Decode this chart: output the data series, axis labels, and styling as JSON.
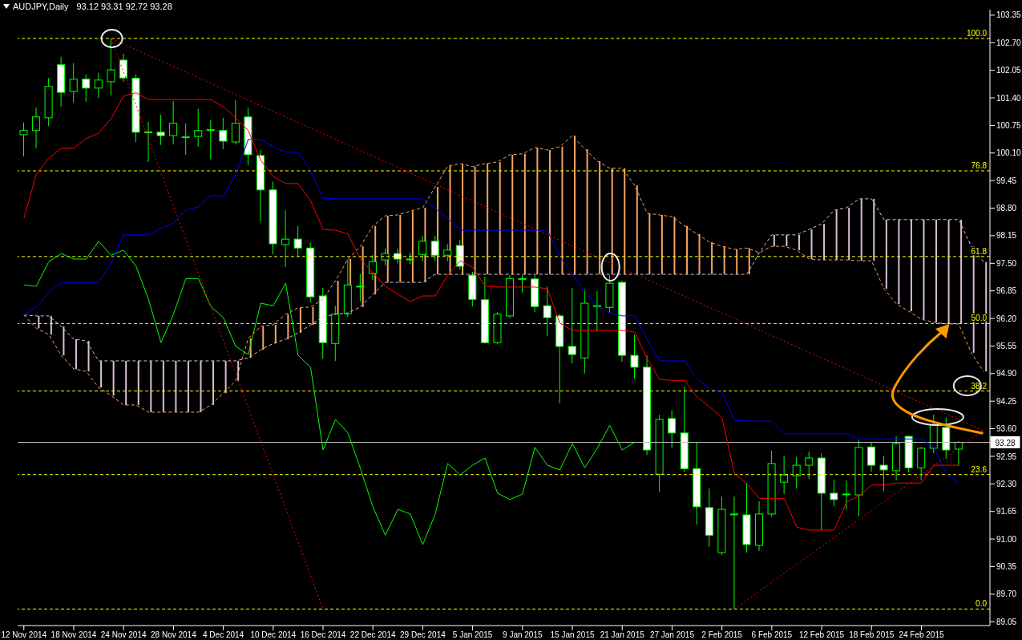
{
  "chart_data": {
    "type": "candlestick",
    "title": "AUDJPY,Daily",
    "subtitle": "93.12 93.31 92.72 93.28",
    "categories": [
      "12 Nov 2014",
      null,
      null,
      null,
      "18 Nov 2014",
      null,
      null,
      null,
      "24 Nov 2014",
      null,
      null,
      null,
      "28 Nov 2014",
      null,
      null,
      null,
      "4 Dec 2014",
      null,
      null,
      null,
      "10 Dec 2014",
      null,
      null,
      null,
      "16 Dec 2014",
      null,
      null,
      null,
      "22 Dec 2014",
      null,
      null,
      null,
      "29 Dec 2014",
      null,
      null,
      null,
      "5 Jan 2015",
      null,
      null,
      null,
      "9 Jan 2015",
      null,
      null,
      null,
      "15 Jan 2015",
      null,
      null,
      null,
      "21 Jan 2015",
      null,
      null,
      null,
      "27 Jan 2015",
      null,
      null,
      null,
      "2 Feb 2015",
      null,
      null,
      null,
      "6 Feb 2015",
      null,
      null,
      null,
      "12 Feb 2015",
      null,
      null,
      null,
      "18 Feb 2015",
      null,
      null,
      null,
      "24 Feb 2015",
      null,
      null,
      null,
      null,
      null
    ],
    "color": "#00ff00",
    "ohlc": [
      [
        100.53,
        100.82,
        100.02,
        100.63
      ],
      [
        100.63,
        101.17,
        100.21,
        100.95
      ],
      [
        100.93,
        101.87,
        100.74,
        101.67
      ],
      [
        102.18,
        102.37,
        101.19,
        101.53
      ],
      [
        101.55,
        102.22,
        101.29,
        101.84
      ],
      [
        101.84,
        101.95,
        101.31,
        101.63
      ],
      [
        101.63,
        101.99,
        101.4,
        101.82
      ],
      [
        101.78,
        102.8,
        101.46,
        102.06
      ],
      [
        102.29,
        102.44,
        101.78,
        101.87
      ],
      [
        101.86,
        101.95,
        100.36,
        100.59
      ],
      [
        100.58,
        100.83,
        99.89,
        100.6
      ],
      [
        100.59,
        101.0,
        100.29,
        100.51
      ],
      [
        100.51,
        101.33,
        100.3,
        100.8
      ],
      [
        100.47,
        100.8,
        100.06,
        100.48
      ],
      [
        100.49,
        101.14,
        100.25,
        100.63
      ],
      [
        100.64,
        100.87,
        99.95,
        100.65
      ],
      [
        100.63,
        100.93,
        100.19,
        100.38
      ],
      [
        100.36,
        101.35,
        100.3,
        100.8
      ],
      [
        100.95,
        101.17,
        99.81,
        100.06
      ],
      [
        100.04,
        100.17,
        98.49,
        99.23
      ],
      [
        99.23,
        99.43,
        97.71,
        97.96
      ],
      [
        97.94,
        98.75,
        97.41,
        98.07
      ],
      [
        98.07,
        98.38,
        97.66,
        97.86
      ],
      [
        97.86,
        97.99,
        96.58,
        96.71
      ],
      [
        96.73,
        96.92,
        95.25,
        95.63
      ],
      [
        95.61,
        96.5,
        95.2,
        96.3
      ],
      [
        96.31,
        97.6,
        96.24,
        96.99
      ],
      [
        96.95,
        97.25,
        96.6,
        96.96
      ],
      [
        97.26,
        97.7,
        97.1,
        97.54
      ],
      [
        97.58,
        97.85,
        97.45,
        97.73
      ],
      [
        97.73,
        97.85,
        97.5,
        97.6
      ],
      [
        97.59,
        97.75,
        97.48,
        97.6
      ],
      [
        97.71,
        98.15,
        97.55,
        98.02
      ],
      [
        98.02,
        98.15,
        97.55,
        97.69
      ],
      [
        97.69,
        97.95,
        97.55,
        97.81
      ],
      [
        97.92,
        98.05,
        97.35,
        97.43
      ],
      [
        97.22,
        97.3,
        96.48,
        96.65
      ],
      [
        96.64,
        97.18,
        95.61,
        95.63
      ],
      [
        95.63,
        96.35,
        95.59,
        96.3
      ],
      [
        96.26,
        97.22,
        96.2,
        97.14
      ],
      [
        97.13,
        97.22,
        96.81,
        97.14
      ],
      [
        97.13,
        97.22,
        96.35,
        96.48
      ],
      [
        96.5,
        96.96,
        95.78,
        96.22
      ],
      [
        96.26,
        96.31,
        94.2,
        95.54
      ],
      [
        95.54,
        96.92,
        95.14,
        95.35
      ],
      [
        95.27,
        96.88,
        94.9,
        96.56
      ],
      [
        96.49,
        96.84,
        95.89,
        96.5
      ],
      [
        96.46,
        97.22,
        96.33,
        97.03
      ],
      [
        97.05,
        97.09,
        95.18,
        95.33
      ],
      [
        95.33,
        95.82,
        94.78,
        95.05
      ],
      [
        95.05,
        95.33,
        92.98,
        93.1
      ],
      [
        92.53,
        93.93,
        92.11,
        93.82
      ],
      [
        93.84,
        94.04,
        93.14,
        93.5
      ],
      [
        93.5,
        94.59,
        92.59,
        92.66
      ],
      [
        92.66,
        93.27,
        91.34,
        91.76
      ],
      [
        91.74,
        92.19,
        90.81,
        91.09
      ],
      [
        90.68,
        92.0,
        90.62,
        91.7
      ],
      [
        91.58,
        92.0,
        89.35,
        91.59
      ],
      [
        91.57,
        92.32,
        90.68,
        90.87
      ],
      [
        90.85,
        91.89,
        90.72,
        91.59
      ],
      [
        91.59,
        93.08,
        91.53,
        92.78
      ],
      [
        92.34,
        92.95,
        92.06,
        92.51
      ],
      [
        92.49,
        92.93,
        92.19,
        92.74
      ],
      [
        92.74,
        93.06,
        92.42,
        92.91
      ],
      [
        92.91,
        93.02,
        91.21,
        92.08
      ],
      [
        92.08,
        92.4,
        91.77,
        91.93
      ],
      [
        92.05,
        92.38,
        91.69,
        92.06
      ],
      [
        92.04,
        93.33,
        91.53,
        93.16
      ],
      [
        93.17,
        93.27,
        92.59,
        92.74
      ],
      [
        92.74,
        92.95,
        92.13,
        92.63
      ],
      [
        92.61,
        93.42,
        92.38,
        93.25
      ],
      [
        93.42,
        93.44,
        92.57,
        92.68
      ],
      [
        92.68,
        93.17,
        92.38,
        93.14
      ],
      [
        93.14,
        93.93,
        93.02,
        93.68
      ],
      [
        93.63,
        93.87,
        92.89,
        93.1
      ],
      [
        93.12,
        93.31,
        92.72,
        93.28
      ],
      null,
      null
    ],
    "colors": [
      "#000000",
      "#000000",
      "#000000",
      "#ffffff",
      "#000000",
      "#ffffff",
      "#000000",
      "#000000",
      "#ffffff",
      "#ffffff",
      "#000000",
      "#ffffff",
      "#000000",
      "#000000",
      "#000000",
      "#000000",
      "#ffffff",
      "#000000",
      "#ffffff",
      "#ffffff",
      "#ffffff",
      "#000000",
      "#ffffff",
      "#ffffff",
      "#ffffff",
      "#000000",
      "#000000",
      "#000000",
      "#000000",
      "#000000",
      "#ffffff",
      "#000000",
      "#000000",
      "#ffffff",
      "#000000",
      "#ffffff",
      "#ffffff",
      "#ffffff",
      "#000000",
      "#000000",
      "#000000",
      "#ffffff",
      "#ffffff",
      "#ffffff",
      "#ffffff",
      "#000000",
      "#000000",
      "#000000",
      "#ffffff",
      "#ffffff",
      "#ffffff",
      "#000000",
      "#ffffff",
      "#ffffff",
      "#ffffff",
      "#ffffff",
      "#000000",
      "#000000",
      "#ffffff",
      "#000000",
      "#000000",
      "#000000",
      "#000000",
      "#000000",
      "#ffffff",
      "#ffffff",
      "#000000",
      "#000000",
      "#ffffff",
      "#ffffff",
      "#000000",
      "#ffffff",
      "#000000",
      "#000000",
      "#ffffff",
      "#000000",
      null,
      null
    ],
    "series": [
      {
        "type": "line",
        "color": "#f4a460",
        "line_style": "dashed",
        "values": [
          96.28,
          95.97,
          95.82,
          95.33,
          95.01,
          94.95,
          94.57,
          94.38,
          94.16,
          94.16,
          93.99,
          93.99,
          93.99,
          93.99,
          93.99,
          94.16,
          94.44,
          94.73,
          95.73,
          96.01,
          96.05,
          96.3,
          96.45,
          96.47,
          96.65,
          97.09,
          97.6,
          97.9,
          98.38,
          98.62,
          98.64,
          98.73,
          98.81,
          99.3,
          99.79,
          99.85,
          99.78,
          99.85,
          99.89,
          100.06,
          100.08,
          100.23,
          100.17,
          100.25,
          100.51,
          100.19,
          99.91,
          99.74,
          99.74,
          99.34,
          98.68,
          98.64,
          98.6,
          98.38,
          98.19,
          98.0,
          97.9,
          97.83,
          97.86,
          97.75,
          97.9,
          97.9,
          97.81,
          97.6,
          97.58,
          97.58,
          97.58,
          97.56,
          97.56,
          96.9,
          96.54,
          96.37,
          96.18,
          96.11,
          96.07,
          96.07,
          95.39,
          94.95
        ]
      },
      {
        "type": "line",
        "color": "#d8bfd8",
        "line_style": "dashed",
        "values": [
          96.28,
          96.26,
          96.26,
          96.01,
          95.71,
          95.67,
          95.2,
          95.2,
          95.2,
          95.2,
          95.2,
          95.2,
          95.2,
          95.2,
          95.2,
          95.2,
          95.2,
          95.2,
          95.27,
          95.46,
          95.61,
          95.71,
          95.86,
          96.05,
          96.24,
          96.3,
          96.33,
          96.47,
          96.77,
          97.05,
          97.05,
          97.05,
          97.05,
          97.24,
          97.24,
          97.24,
          97.24,
          97.24,
          97.24,
          97.24,
          97.24,
          97.24,
          97.24,
          97.24,
          97.24,
          97.24,
          97.24,
          97.24,
          97.24,
          97.24,
          97.24,
          97.24,
          97.24,
          97.24,
          97.24,
          97.24,
          97.24,
          97.24,
          97.24,
          97.75,
          98.17,
          98.17,
          98.17,
          98.3,
          98.43,
          98.75,
          98.81,
          99.02,
          99.02,
          98.53,
          98.53,
          98.53,
          98.53,
          98.53,
          98.53,
          98.53,
          97.9,
          97.53
        ]
      },
      {
        "type": "line",
        "color": "#00ff00",
        "values": [
          96.99,
          96.96,
          97.54,
          97.73,
          97.6,
          97.6,
          98.02,
          97.69,
          97.81,
          97.43,
          96.65,
          95.63,
          96.3,
          97.14,
          97.14,
          96.48,
          96.22,
          95.54,
          95.35,
          96.56,
          96.5,
          97.03,
          95.33,
          95.05,
          93.1,
          93.82,
          93.5,
          92.66,
          91.76,
          91.09,
          91.7,
          91.59,
          90.87,
          91.59,
          92.78,
          92.51,
          92.74,
          92.91,
          92.08,
          91.93,
          92.06,
          93.16,
          92.74,
          92.63,
          93.25,
          92.68,
          93.14,
          93.68,
          93.1,
          93.28,
          null,
          null,
          null,
          null,
          null,
          null,
          null,
          null,
          null,
          null,
          null,
          null,
          null,
          null,
          null,
          null,
          null,
          null,
          null,
          null,
          null,
          null,
          null,
          null,
          null,
          null,
          null,
          null
        ]
      },
      {
        "type": "line",
        "color": "#0000ff",
        "values": [
          96.28,
          96.47,
          96.81,
          97.05,
          97.05,
          97.05,
          97.05,
          97.51,
          98.17,
          98.17,
          98.17,
          98.32,
          98.45,
          98.75,
          98.83,
          99.09,
          99.09,
          99.6,
          100.42,
          100.42,
          100.25,
          100.12,
          100.12,
          99.68,
          99.04,
          99.02,
          99.02,
          99.02,
          99.02,
          99.02,
          99.02,
          99.02,
          99.02,
          98.79,
          98.56,
          98.28,
          98.28,
          98.28,
          98.28,
          98.28,
          98.28,
          98.28,
          98.28,
          97.66,
          97.24,
          96.84,
          96.48,
          96.33,
          96.26,
          96.26,
          95.71,
          95.2,
          95.2,
          95.2,
          94.78,
          94.54,
          94.46,
          93.8,
          93.78,
          93.78,
          93.78,
          93.48,
          93.48,
          93.48,
          93.48,
          93.48,
          93.48,
          93.36,
          93.36,
          93.36,
          93.36,
          93.36,
          93.36,
          93.17,
          92.55,
          92.32,
          null,
          null
        ]
      },
      {
        "type": "line",
        "color": "#ff0000",
        "values": [
          98.56,
          99.6,
          99.98,
          100.21,
          100.21,
          100.44,
          100.57,
          100.91,
          101.44,
          101.52,
          101.36,
          101.36,
          101.36,
          101.36,
          101.36,
          101.36,
          101.19,
          100.93,
          100.63,
          99.93,
          99.55,
          99.38,
          99.38,
          98.98,
          98.3,
          98.28,
          98.19,
          97.6,
          97.28,
          96.96,
          96.77,
          96.6,
          96.73,
          96.73,
          97.22,
          97.56,
          97.41,
          96.96,
          96.94,
          96.94,
          96.94,
          96.94,
          96.9,
          96.09,
          95.92,
          95.92,
          95.92,
          95.92,
          95.92,
          95.88,
          95.25,
          94.76,
          94.74,
          94.74,
          94.35,
          94.12,
          93.86,
          92.55,
          92.3,
          91.96,
          91.96,
          91.96,
          91.28,
          91.21,
          91.21,
          91.21,
          91.87,
          92.02,
          92.27,
          92.28,
          92.32,
          92.32,
          92.32,
          92.74,
          92.74,
          92.74,
          null,
          null
        ]
      },
      {
        "type": "line",
        "color": "#ff0000",
        "line_style": "dotted",
        "values": [
          null,
          null,
          null,
          null,
          null,
          null,
          null,
          102.8,
          null,
          null,
          null,
          null,
          null,
          null,
          null,
          null,
          null,
          null,
          null,
          null,
          null,
          null,
          null,
          null,
          null,
          null,
          null,
          null,
          null,
          null,
          null,
          null,
          null,
          null,
          null,
          null,
          null,
          null,
          null,
          null,
          null,
          null,
          null,
          null,
          null,
          null,
          null,
          null,
          null,
          null,
          null,
          null,
          null,
          null,
          null,
          null,
          null,
          null,
          null,
          null,
          null,
          null,
          null,
          null,
          null,
          null,
          null,
          null,
          null,
          null,
          null,
          null,
          null,
          null,
          null,
          null,
          null,
          93.55
        ]
      },
      {
        "type": "line",
        "color": "#ff0000",
        "line_style": "dotted",
        "values": [
          null,
          null,
          null,
          null,
          null,
          null,
          null,
          102.8,
          null,
          null,
          null,
          null,
          null,
          null,
          null,
          null,
          null,
          null,
          null,
          null,
          null,
          null,
          null,
          null,
          89.35,
          null,
          null,
          null,
          null,
          null,
          null,
          null,
          null,
          null,
          null,
          null,
          null,
          null,
          null,
          null,
          null,
          null,
          null,
          null,
          null,
          null,
          null,
          null,
          null,
          null,
          null,
          null,
          null,
          null,
          null,
          null,
          null,
          null,
          null,
          null,
          null,
          null,
          null,
          null,
          null,
          null,
          null,
          null,
          null,
          null,
          null,
          null,
          null,
          null,
          null,
          null,
          null,
          null
        ]
      },
      {
        "type": "line",
        "color": "#ff0000",
        "line_style": "dotted",
        "values": [
          null,
          null,
          null,
          null,
          null,
          null,
          null,
          null,
          null,
          null,
          null,
          null,
          null,
          null,
          null,
          null,
          null,
          null,
          null,
          null,
          null,
          null,
          null,
          null,
          null,
          null,
          null,
          null,
          null,
          null,
          null,
          null,
          null,
          null,
          null,
          null,
          null,
          null,
          null,
          null,
          null,
          null,
          null,
          null,
          null,
          null,
          null,
          null,
          null,
          null,
          null,
          null,
          null,
          null,
          null,
          null,
          null,
          89.35,
          null,
          null,
          null,
          null,
          null,
          null,
          null,
          null,
          null,
          null,
          null,
          null,
          null,
          null,
          null,
          null,
          null,
          null,
          null,
          93.57
        ]
      }
    ],
    "ylim": [
      88.96,
      103.48
    ],
    "yticks": [
      103.35,
      {
        "value": 102.7,
        "label": "102.70"
      },
      102.05,
      {
        "value": 101.4,
        "label": "101.40"
      },
      100.75,
      {
        "value": 100.1,
        "label": "100.10"
      },
      99.45,
      {
        "value": 98.8,
        "label": "98.80"
      },
      98.15,
      {
        "value": 97.5,
        "label": "97.50"
      },
      96.85,
      {
        "value": 96.2,
        "label": "96.20"
      },
      95.55,
      {
        "value": 94.9,
        "label": "94.90"
      },
      94.25,
      {
        "value": 93.6,
        "label": "93.60"
      },
      92.95,
      {
        "value": 92.3,
        "label": "92.30"
      },
      91.65,
      {
        "value": 91,
        "label": "91.00"
      },
      90.35,
      {
        "value": 89.7,
        "label": "89.70"
      },
      89.05
    ],
    "ref_lines": [
      {
        "axis": "y",
        "value": 102.8,
        "color": "#ffff00",
        "line_style": "dashed"
      },
      {
        "axis": "y",
        "value": 99.68,
        "color": "#ffff00",
        "line_style": "dashed"
      },
      {
        "axis": "y",
        "value": 97.66,
        "color": "#ffff00",
        "line_style": "dashed"
      },
      {
        "axis": "y",
        "value": 96.08,
        "color": "#ffff00",
        "line_style": "dashed"
      },
      {
        "axis": "y",
        "value": 94.49,
        "color": "#ffff00",
        "line_style": "dashed"
      },
      {
        "axis": "y",
        "value": 92.52,
        "color": "#ffff00",
        "line_style": "dashed"
      },
      {
        "axis": "y",
        "value": 89.35,
        "color": "#ffff00",
        "line_style": "dashed"
      },
      {
        "axis": "y",
        "value": 93.28,
        "label": "93.28",
        "color": "#c0c0c0",
        "line_style": "solid"
      }
    ],
    "annotations": [
      {
        "text": "100.0",
        "y": 102.8
      },
      {
        "text": "76.8",
        "y": 99.68
      },
      {
        "text": "61.8",
        "y": 97.66
      },
      {
        "text": "50.0",
        "y": 96.08
      },
      {
        "text": "38.2",
        "y": 94.49
      },
      {
        "text": "23.6",
        "y": 92.52
      },
      {
        "text": "0.0",
        "y": 89.35
      }
    ]
  }
}
